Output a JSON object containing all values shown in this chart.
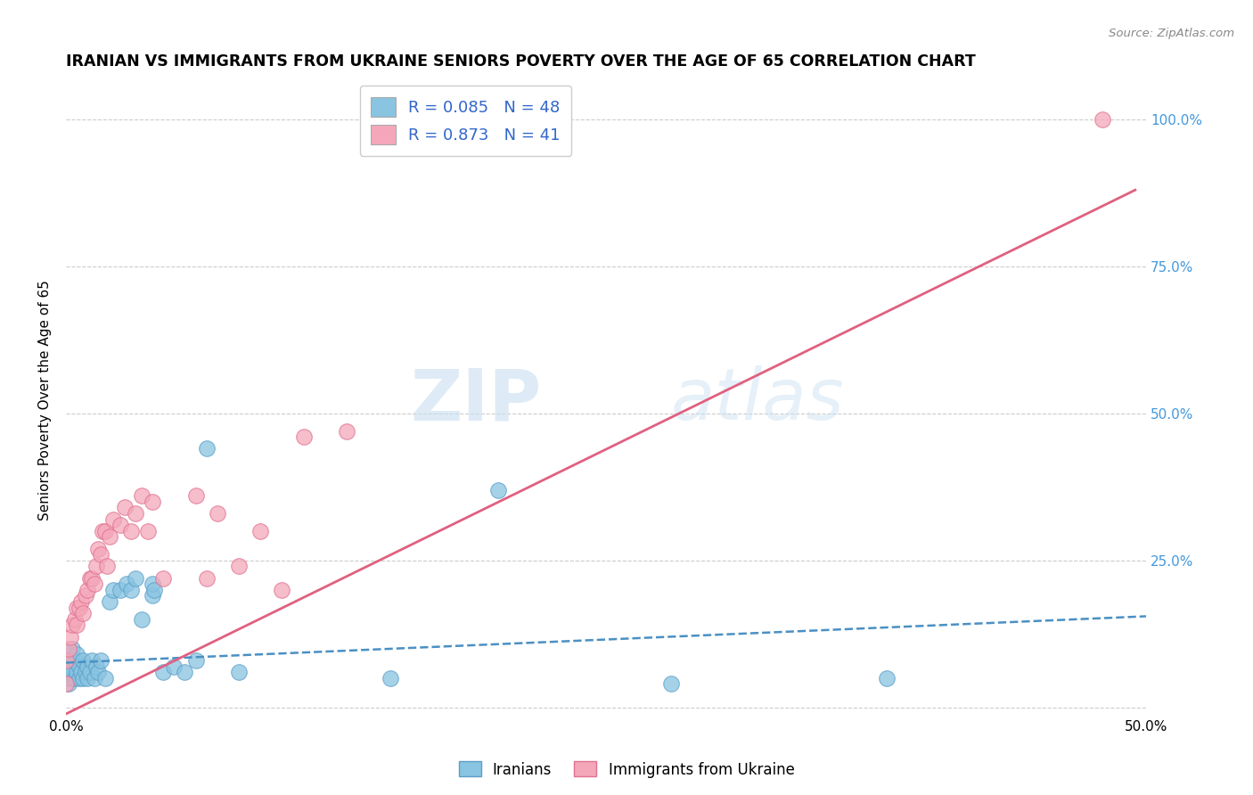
{
  "title": "IRANIAN VS IMMIGRANTS FROM UKRAINE SENIORS POVERTY OVER THE AGE OF 65 CORRELATION CHART",
  "source": "Source: ZipAtlas.com",
  "ylabel": "Seniors Poverty Over the Age of 65",
  "xlim": [
    0.0,
    0.5
  ],
  "ylim": [
    -0.015,
    1.06
  ],
  "legend_blue_R": "0.085",
  "legend_blue_N": "48",
  "legend_pink_R": "0.873",
  "legend_pink_N": "41",
  "blue_color": "#89c4e1",
  "blue_edge_color": "#5b9ec9",
  "pink_color": "#f4a7b9",
  "pink_edge_color": "#e07090",
  "blue_line_color": "#4a90c4",
  "pink_line_color": "#e06080",
  "legend_text_color": "#3366cc",
  "watermark_zip": "ZIP",
  "watermark_atlas": "atlas",
  "background_color": "#ffffff",
  "grid_color": "#cccccc",
  "title_fontsize": 12.5,
  "axis_label_fontsize": 11,
  "tick_fontsize": 11,
  "legend_fontsize": 13,
  "iranians_x": [
    0.0,
    0.0,
    0.001,
    0.001,
    0.001,
    0.002,
    0.002,
    0.003,
    0.003,
    0.004,
    0.004,
    0.005,
    0.005,
    0.006,
    0.006,
    0.007,
    0.008,
    0.008,
    0.009,
    0.01,
    0.01,
    0.011,
    0.012,
    0.013,
    0.014,
    0.015,
    0.016,
    0.018,
    0.02,
    0.022,
    0.025,
    0.028,
    0.03,
    0.032,
    0.035,
    0.04,
    0.04,
    0.041,
    0.045,
    0.05,
    0.055,
    0.06,
    0.065,
    0.08,
    0.15,
    0.2,
    0.28,
    0.38
  ],
  "iranians_y": [
    0.05,
    0.08,
    0.04,
    0.06,
    0.09,
    0.05,
    0.07,
    0.06,
    0.1,
    0.05,
    0.08,
    0.06,
    0.09,
    0.05,
    0.07,
    0.06,
    0.05,
    0.08,
    0.06,
    0.05,
    0.07,
    0.06,
    0.08,
    0.05,
    0.07,
    0.06,
    0.08,
    0.05,
    0.18,
    0.2,
    0.2,
    0.21,
    0.2,
    0.22,
    0.15,
    0.19,
    0.21,
    0.2,
    0.06,
    0.07,
    0.06,
    0.08,
    0.44,
    0.06,
    0.05,
    0.37,
    0.04,
    0.05
  ],
  "ukraine_x": [
    0.0,
    0.0,
    0.001,
    0.002,
    0.003,
    0.004,
    0.005,
    0.005,
    0.006,
    0.007,
    0.008,
    0.009,
    0.01,
    0.011,
    0.012,
    0.013,
    0.014,
    0.015,
    0.016,
    0.017,
    0.018,
    0.019,
    0.02,
    0.022,
    0.025,
    0.027,
    0.03,
    0.032,
    0.035,
    0.038,
    0.04,
    0.045,
    0.06,
    0.065,
    0.07,
    0.08,
    0.09,
    0.1,
    0.11,
    0.13,
    0.48
  ],
  "ukraine_y": [
    0.04,
    0.08,
    0.1,
    0.12,
    0.14,
    0.15,
    0.14,
    0.17,
    0.17,
    0.18,
    0.16,
    0.19,
    0.2,
    0.22,
    0.22,
    0.21,
    0.24,
    0.27,
    0.26,
    0.3,
    0.3,
    0.24,
    0.29,
    0.32,
    0.31,
    0.34,
    0.3,
    0.33,
    0.36,
    0.3,
    0.35,
    0.22,
    0.36,
    0.22,
    0.33,
    0.24,
    0.3,
    0.2,
    0.46,
    0.47,
    1.0
  ],
  "iran_trend_x0": 0.0,
  "iran_trend_x1": 0.5,
  "iran_trend_y0": 0.076,
  "iran_trend_y1": 0.155,
  "ukr_trend_x0": -0.005,
  "ukr_trend_x1": 0.495,
  "ukr_trend_y0": -0.02,
  "ukr_trend_y1": 0.88
}
